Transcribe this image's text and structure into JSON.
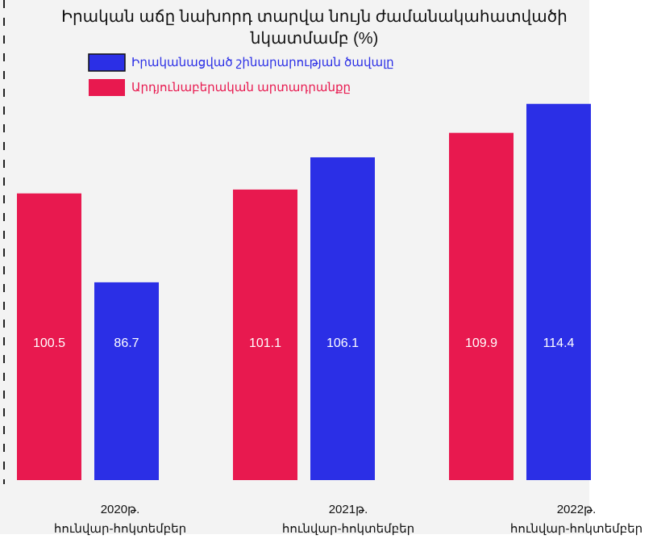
{
  "chart_data": {
    "type": "bar",
    "title": "Իրական աճը նախորդ տարվա նույն ժամանակահատվածի նկատմամբ (%)",
    "categories": [
      "2020թ.\nհունվար-հոկտեմբեր",
      "2021թ.\nհունվար-հոկտեմբեր",
      "2022թ.\nհունվար-հոկտեմբեր"
    ],
    "series": [
      {
        "name": "Իրականացված շինարարության ծավալը",
        "color": "#2b2fe6",
        "values": [
          86.7,
          106.1,
          114.4
        ]
      },
      {
        "name": "Արդյունաբերական արտադրանքը",
        "color": "#e8194f",
        "values": [
          100.5,
          101.1,
          109.9
        ]
      }
    ],
    "ylim": [
      56,
      120
    ]
  }
}
